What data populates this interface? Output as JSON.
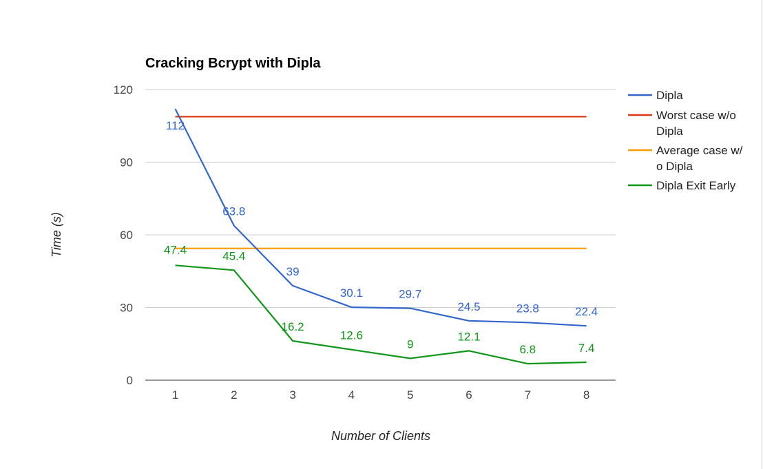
{
  "chart_data": {
    "type": "line",
    "title": "Cracking Bcrypt with Dipla",
    "xlabel": "Number of Clients",
    "ylabel": "Time (s)",
    "categories": [
      "1",
      "2",
      "3",
      "4",
      "5",
      "6",
      "7",
      "8"
    ],
    "ylim": [
      0,
      120
    ],
    "yticks": [
      "0",
      "30",
      "60",
      "90",
      "120"
    ],
    "grid": true,
    "legend_position": "right",
    "series": [
      {
        "name": "Dipla",
        "color": "#3366cc",
        "values": [
          112,
          63.8,
          39,
          30.1,
          29.7,
          24.5,
          23.8,
          22.4
        ],
        "labels": [
          "112",
          "63.8",
          "39",
          "30.1",
          "29.7",
          "24.5",
          "23.8",
          "22.4"
        ]
      },
      {
        "name": "Worst case w/o Dipla",
        "legend_lines": [
          "Worst case w/o",
          "Dipla"
        ],
        "color": "#dc3912",
        "values": [
          108.8,
          108.8,
          108.8,
          108.8,
          108.8,
          108.8,
          108.8,
          108.8
        ],
        "labels": []
      },
      {
        "name": "Average case w/o Dipla",
        "legend_lines": [
          "Average case w/",
          "o Dipla"
        ],
        "color": "#ff9900",
        "values": [
          54.4,
          54.4,
          54.4,
          54.4,
          54.4,
          54.4,
          54.4,
          54.4
        ],
        "labels": []
      },
      {
        "name": "Dipla Exit Early",
        "color": "#109618",
        "values": [
          47.4,
          45.4,
          16.2,
          12.6,
          9,
          12.1,
          6.8,
          7.4
        ],
        "labels": [
          "47.4",
          "45.4",
          "16.2",
          "12.6",
          "9",
          "12.1",
          "6.8",
          "7.4"
        ]
      }
    ]
  }
}
